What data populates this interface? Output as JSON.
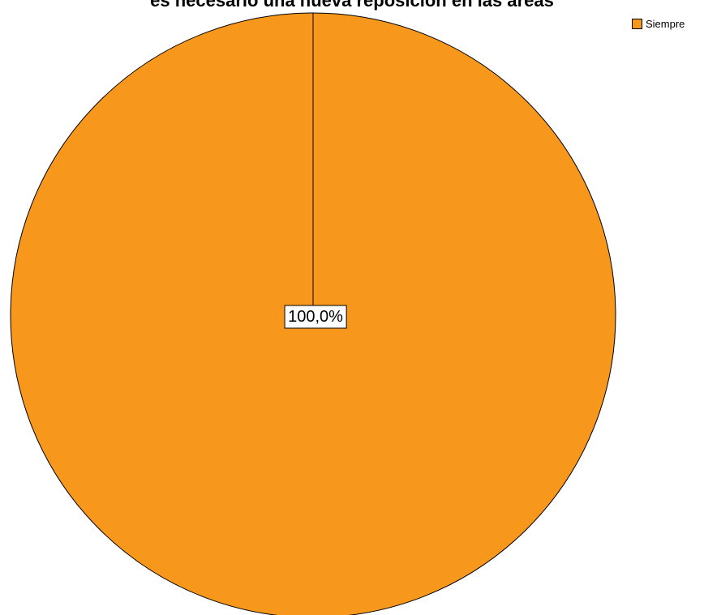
{
  "chart_data": {
    "type": "pie",
    "title": "es necesario una nueva reposición en las áreas",
    "categories": [
      "Siempre"
    ],
    "values": [
      100.0
    ],
    "data_labels": [
      "100,0%"
    ],
    "colors": [
      "#F7981D"
    ],
    "legend": {
      "placement": "top-right",
      "entries": [
        "Siempre"
      ]
    }
  }
}
